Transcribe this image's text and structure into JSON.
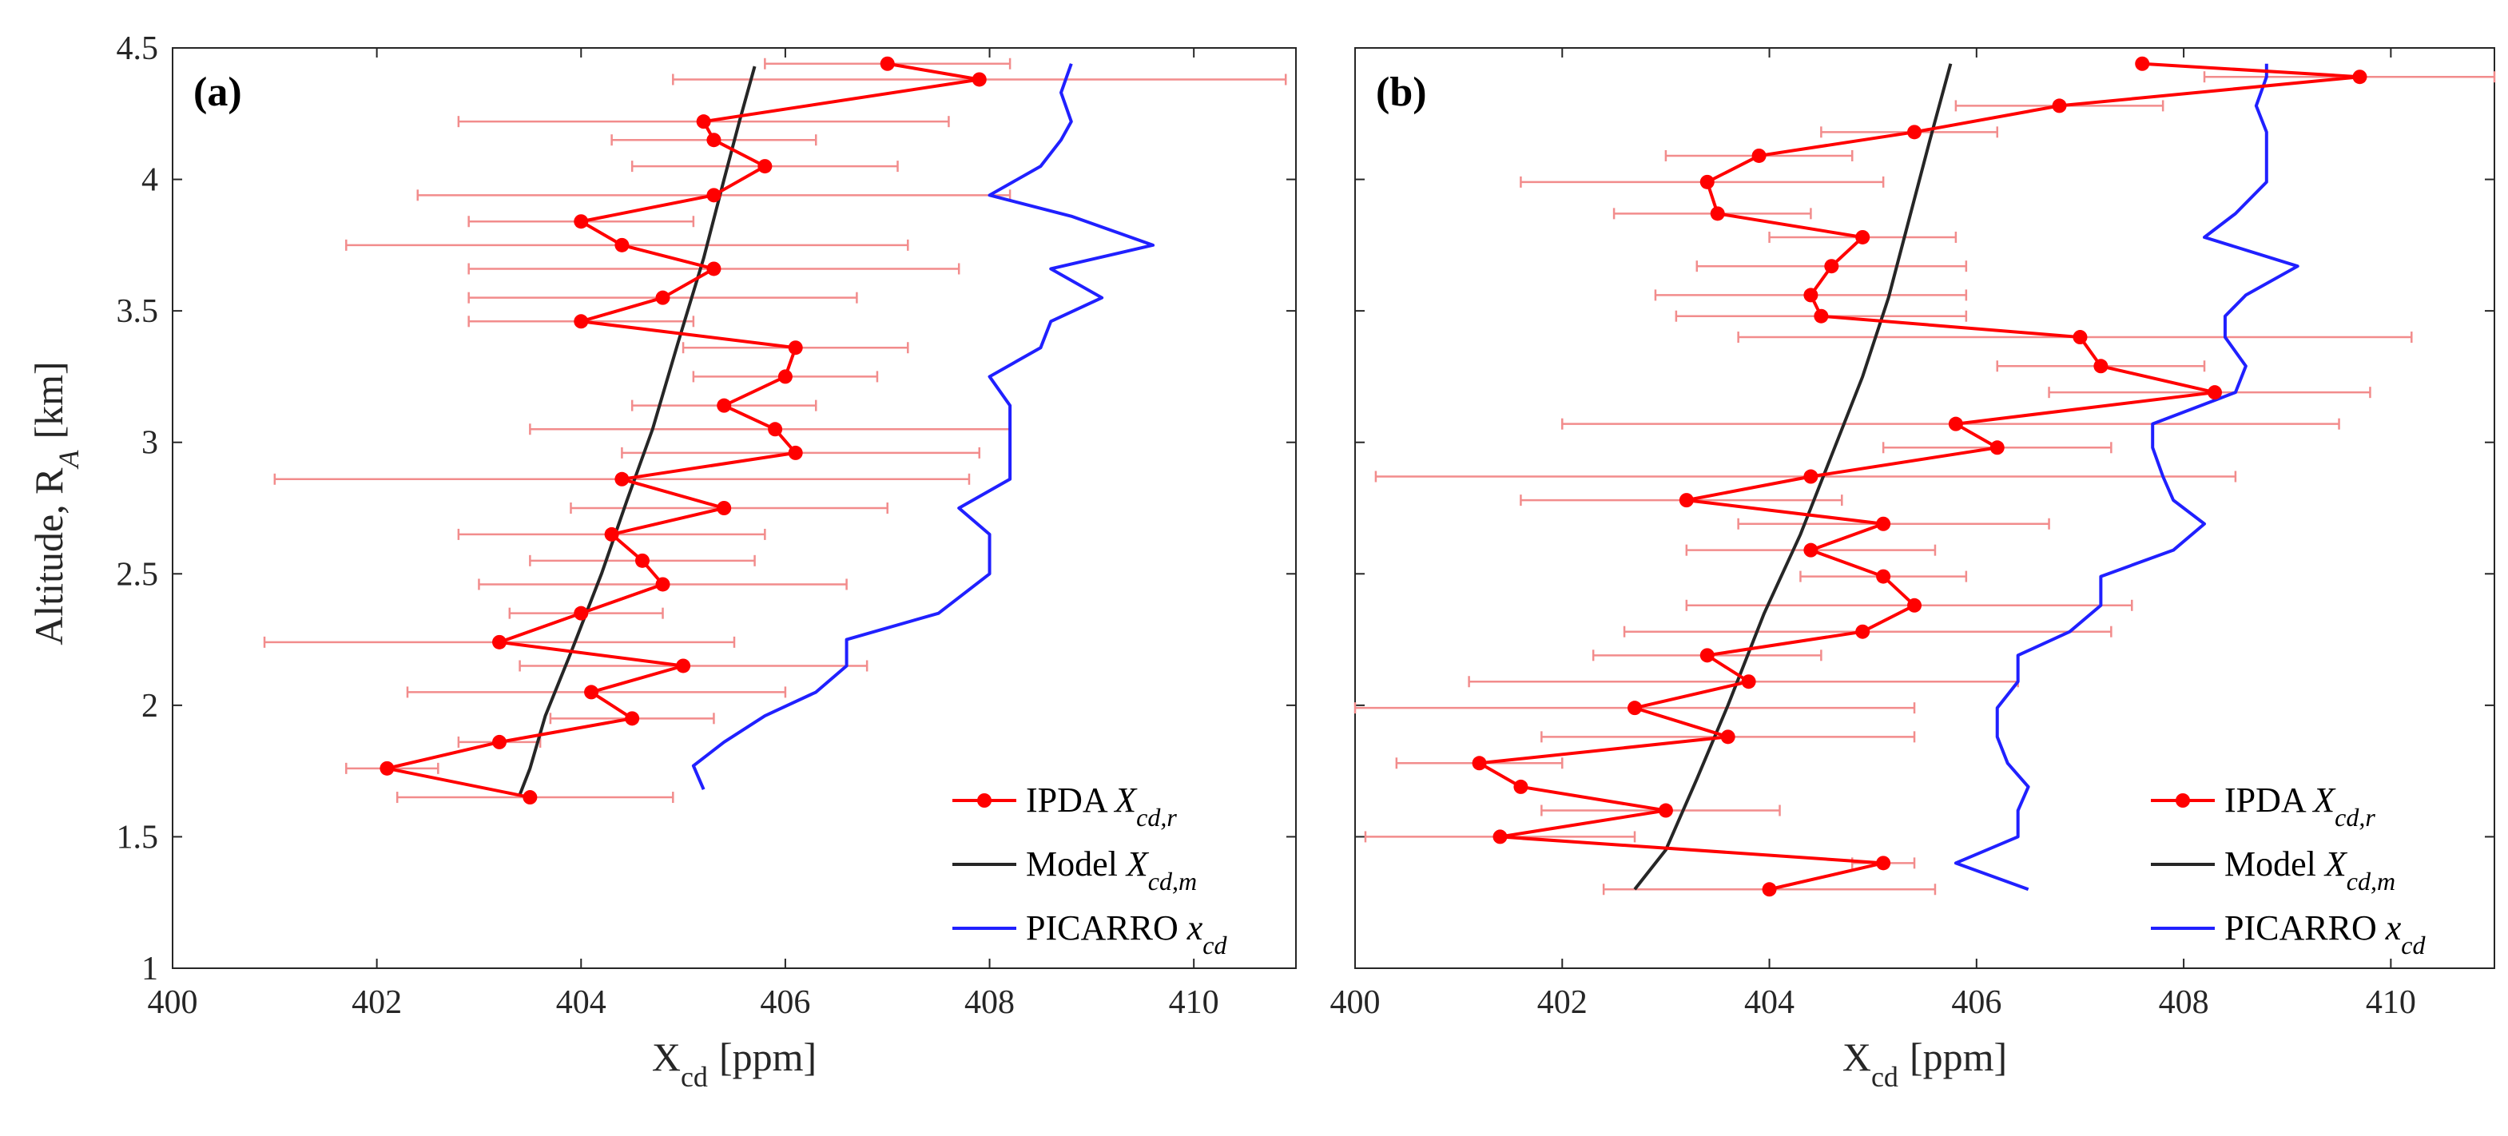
{
  "chart_data": [
    {
      "type": "line",
      "panel_label": "(a)",
      "xlabel": "X",
      "xlabel_sub": "cd",
      "xlabel_units": "[ppm]",
      "ylabel": "Altitude, R",
      "ylabel_sub": "A",
      "ylabel_units": "[km]",
      "xlim": [
        400,
        411
      ],
      "ylim": [
        1,
        4.5
      ],
      "xticks": [
        400,
        402,
        404,
        406,
        408,
        410
      ],
      "yticks": [
        1,
        1.5,
        2,
        2.5,
        3,
        3.5,
        4,
        4.5
      ],
      "legend": {
        "location": "bottom-right",
        "entries": [
          {
            "text": "IPDA ",
            "italic": "X",
            "sub": "cd,r",
            "color": "#ff0000"
          },
          {
            "text": "Model ",
            "italic": "X",
            "sub": "cd,m",
            "color": "#262626"
          },
          {
            "text": "PICARRO ",
            "italic": "x",
            "sub": "cd",
            "color": "#2020ff"
          }
        ]
      },
      "series": [
        {
          "name": "IPDA X_cd,r",
          "color": "#ff0000",
          "marker": "circle",
          "points": [
            [
              407.0,
              4.44,
              405.8,
              408.2
            ],
            [
              407.9,
              4.38,
              404.9,
              410.9
            ],
            [
              405.2,
              4.22,
              402.8,
              407.6
            ],
            [
              405.3,
              4.15,
              404.3,
              406.3
            ],
            [
              405.8,
              4.05,
              404.5,
              407.1
            ],
            [
              405.3,
              3.94,
              402.4,
              408.2
            ],
            [
              404.0,
              3.84,
              402.9,
              405.1
            ],
            [
              404.4,
              3.75,
              401.7,
              407.2
            ],
            [
              405.3,
              3.66,
              402.9,
              407.7
            ],
            [
              404.8,
              3.55,
              402.9,
              406.7
            ],
            [
              404.0,
              3.46,
              402.9,
              405.1
            ],
            [
              406.1,
              3.36,
              405.0,
              407.2
            ],
            [
              406.0,
              3.25,
              405.1,
              406.9
            ],
            [
              405.4,
              3.14,
              404.5,
              406.3
            ],
            [
              405.9,
              3.05,
              403.5,
              408.2
            ],
            [
              406.1,
              2.96,
              404.4,
              407.9
            ],
            [
              404.4,
              2.86,
              401.0,
              407.8
            ],
            [
              405.4,
              2.75,
              403.9,
              407.0
            ],
            [
              404.3,
              2.65,
              402.8,
              405.8
            ],
            [
              404.6,
              2.55,
              403.5,
              405.7
            ],
            [
              404.8,
              2.46,
              403.0,
              406.6
            ],
            [
              404.0,
              2.35,
              403.3,
              404.8
            ],
            [
              403.2,
              2.24,
              400.9,
              405.5
            ],
            [
              405.0,
              2.15,
              403.4,
              406.8
            ],
            [
              404.1,
              2.05,
              402.3,
              406.0
            ],
            [
              404.5,
              1.95,
              403.7,
              405.3
            ],
            [
              403.2,
              1.86,
              402.8,
              403.6
            ],
            [
              402.1,
              1.76,
              401.7,
              402.6
            ],
            [
              403.5,
              1.65,
              402.2,
              404.9
            ]
          ]
        },
        {
          "name": "Model X_cd,m",
          "color": "#262626",
          "points": [
            [
              403.4,
              1.66
            ],
            [
              403.5,
              1.76
            ],
            [
              403.65,
              1.96
            ],
            [
              403.9,
              2.2
            ],
            [
              404.2,
              2.5
            ],
            [
              404.45,
              2.78
            ],
            [
              404.7,
              3.05
            ],
            [
              404.95,
              3.38
            ],
            [
              405.2,
              3.7
            ],
            [
              405.4,
              4.0
            ],
            [
              405.55,
              4.22
            ],
            [
              405.7,
              4.43
            ]
          ]
        },
        {
          "name": "PICARRO x_cd",
          "color": "#2020ff",
          "points": [
            [
              405.2,
              1.68
            ],
            [
              405.1,
              1.77
            ],
            [
              405.4,
              1.86
            ],
            [
              405.8,
              1.96
            ],
            [
              406.3,
              2.05
            ],
            [
              406.6,
              2.15
            ],
            [
              406.6,
              2.24
            ],
            [
              406.6,
              2.25
            ],
            [
              407.5,
              2.35
            ],
            [
              408.0,
              2.5
            ],
            [
              408.0,
              2.65
            ],
            [
              407.7,
              2.75
            ],
            [
              408.2,
              2.86
            ],
            [
              408.2,
              3.05
            ],
            [
              408.2,
              3.14
            ],
            [
              408.0,
              3.25
            ],
            [
              408.5,
              3.36
            ],
            [
              408.6,
              3.46
            ],
            [
              409.1,
              3.55
            ],
            [
              408.6,
              3.66
            ],
            [
              409.6,
              3.75
            ],
            [
              408.8,
              3.86
            ],
            [
              408.0,
              3.94
            ],
            [
              408.5,
              4.05
            ],
            [
              408.7,
              4.15
            ],
            [
              408.8,
              4.22
            ],
            [
              408.7,
              4.33
            ],
            [
              408.8,
              4.44
            ]
          ]
        }
      ]
    },
    {
      "type": "line",
      "panel_label": "(b)",
      "xlabel": "X",
      "xlabel_sub": "cd",
      "xlabel_units": "[ppm]",
      "xlim": [
        400,
        411
      ],
      "ylim": [
        1,
        4.5
      ],
      "xticks": [
        400,
        402,
        404,
        406,
        408,
        410
      ],
      "yticks": [
        1,
        1.5,
        2,
        2.5,
        3,
        3.5,
        4,
        4.5
      ],
      "legend": {
        "location": "bottom-right",
        "entries": [
          {
            "text": "IPDA ",
            "italic": "X",
            "sub": "cd,r",
            "color": "#ff0000"
          },
          {
            "text": "Model ",
            "italic": "X",
            "sub": "cd,m",
            "color": "#262626"
          },
          {
            "text": "PICARRO ",
            "italic": "x",
            "sub": "cd",
            "color": "#2020ff"
          }
        ]
      },
      "series": [
        {
          "name": "IPDA X_cd,r",
          "color": "#ff0000",
          "marker": "circle",
          "points": [
            [
              407.6,
              4.44,
              407.6,
              407.6
            ],
            [
              409.7,
              4.39,
              408.2,
              411.0
            ],
            [
              406.8,
              4.28,
              405.8,
              407.8
            ],
            [
              405.4,
              4.18,
              404.5,
              406.2
            ],
            [
              403.9,
              4.09,
              403.0,
              404.8
            ],
            [
              403.4,
              3.99,
              401.6,
              405.1
            ],
            [
              403.5,
              3.87,
              402.5,
              404.4
            ],
            [
              404.9,
              3.78,
              404.0,
              405.8
            ],
            [
              404.6,
              3.67,
              403.3,
              405.9
            ],
            [
              404.4,
              3.56,
              402.9,
              405.9
            ],
            [
              404.5,
              3.48,
              403.1,
              405.9
            ],
            [
              407.0,
              3.4,
              403.7,
              410.2
            ],
            [
              407.2,
              3.29,
              406.2,
              408.2
            ],
            [
              408.3,
              3.19,
              406.7,
              409.8
            ],
            [
              405.8,
              3.07,
              402.0,
              409.5
            ],
            [
              406.2,
              2.98,
              405.1,
              407.3
            ],
            [
              404.4,
              2.87,
              400.2,
              408.5
            ],
            [
              403.2,
              2.78,
              401.6,
              404.7
            ],
            [
              405.1,
              2.69,
              403.7,
              406.7
            ],
            [
              404.4,
              2.59,
              403.2,
              405.6
            ],
            [
              405.1,
              2.49,
              404.3,
              405.9
            ],
            [
              405.4,
              2.38,
              403.2,
              407.5
            ],
            [
              404.9,
              2.28,
              402.6,
              407.3
            ],
            [
              403.4,
              2.19,
              402.3,
              404.5
            ],
            [
              403.8,
              2.09,
              401.1,
              406.4
            ],
            [
              402.7,
              1.99,
              400.0,
              405.4
            ],
            [
              403.6,
              1.88,
              401.8,
              405.4
            ],
            [
              401.2,
              1.78,
              400.4,
              402.0
            ],
            [
              401.6,
              1.69,
              401.6,
              401.6
            ],
            [
              403.0,
              1.6,
              401.8,
              404.1
            ],
            [
              401.4,
              1.5,
              400.1,
              402.7
            ],
            [
              405.1,
              1.4,
              404.8,
              405.4
            ],
            [
              404.0,
              1.3,
              402.4,
              405.6
            ]
          ]
        },
        {
          "name": "Model X_cd,m",
          "color": "#262626",
          "points": [
            [
              402.7,
              1.3
            ],
            [
              403.0,
              1.45
            ],
            [
              403.3,
              1.72
            ],
            [
              403.6,
              2.0
            ],
            [
              403.95,
              2.35
            ],
            [
              404.3,
              2.65
            ],
            [
              404.6,
              2.95
            ],
            [
              404.9,
              3.25
            ],
            [
              405.15,
              3.55
            ],
            [
              405.35,
              3.85
            ],
            [
              405.55,
              4.15
            ],
            [
              405.75,
              4.44
            ]
          ]
        },
        {
          "name": "PICARRO x_cd",
          "color": "#2020ff",
          "points": [
            [
              406.5,
              1.3
            ],
            [
              405.8,
              1.4
            ],
            [
              406.4,
              1.5
            ],
            [
              406.4,
              1.6
            ],
            [
              406.5,
              1.69
            ],
            [
              406.3,
              1.78
            ],
            [
              406.2,
              1.88
            ],
            [
              406.2,
              1.99
            ],
            [
              406.4,
              2.09
            ],
            [
              406.4,
              2.19
            ],
            [
              406.9,
              2.28
            ],
            [
              407.2,
              2.38
            ],
            [
              407.2,
              2.49
            ],
            [
              407.9,
              2.59
            ],
            [
              408.2,
              2.69
            ],
            [
              407.9,
              2.78
            ],
            [
              407.8,
              2.87
            ],
            [
              407.7,
              2.98
            ],
            [
              407.7,
              3.07
            ],
            [
              408.5,
              3.19
            ],
            [
              408.6,
              3.29
            ],
            [
              408.4,
              3.4
            ],
            [
              408.4,
              3.48
            ],
            [
              408.6,
              3.56
            ],
            [
              409.1,
              3.67
            ],
            [
              408.2,
              3.78
            ],
            [
              408.5,
              3.87
            ],
            [
              408.8,
              3.99
            ],
            [
              408.8,
              4.09
            ],
            [
              408.8,
              4.18
            ],
            [
              408.7,
              4.28
            ],
            [
              408.8,
              4.39
            ],
            [
              408.8,
              4.44
            ]
          ]
        }
      ]
    }
  ]
}
